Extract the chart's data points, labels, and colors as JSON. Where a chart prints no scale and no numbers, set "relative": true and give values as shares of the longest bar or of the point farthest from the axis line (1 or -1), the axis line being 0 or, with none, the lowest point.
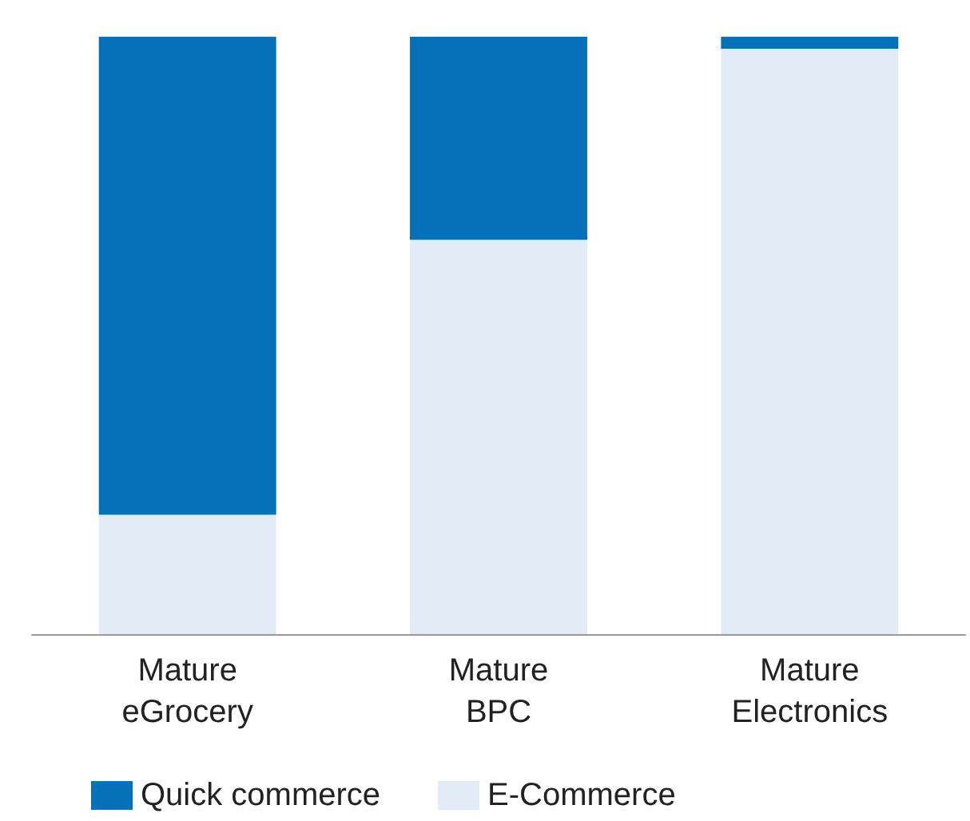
{
  "chart_data": {
    "type": "bar",
    "relative": true,
    "stacked": true,
    "categories": [
      "Mature\neGrocery",
      "Mature\nBPC",
      "Mature\nElectronics"
    ],
    "series": [
      {
        "name": "E-Commerce",
        "color": "#e1ecf6",
        "values": [
          0.2,
          0.66,
          0.98
        ]
      },
      {
        "name": "Quick commerce",
        "color": "#0571b8",
        "values": [
          0.8,
          0.34,
          0.02
        ]
      }
    ],
    "legend": "bottom left",
    "grid": false
  }
}
